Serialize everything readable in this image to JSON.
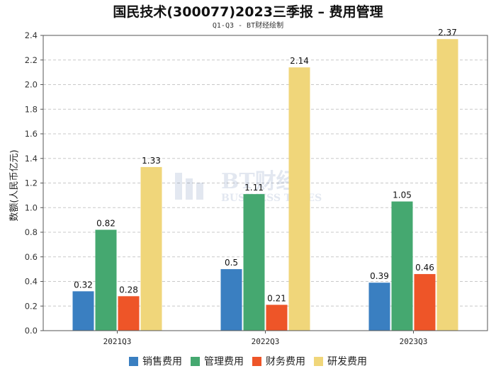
{
  "chart_data": {
    "type": "bar",
    "title": "国民技术(300077)2023三季报 – 费用管理",
    "subtitle": "Q1-Q3 - BT财经绘制",
    "xlabel": "",
    "ylabel": "数额(人民币亿元)",
    "categories": [
      "2021Q3",
      "2022Q3",
      "2023Q3"
    ],
    "ylim": [
      0,
      2.4
    ],
    "yticks": [
      "0.0",
      "0.2",
      "0.4",
      "0.6",
      "0.8",
      "1.0",
      "1.2",
      "1.4",
      "1.6",
      "1.8",
      "2.0",
      "2.2",
      "2.4"
    ],
    "grid": true,
    "legend_position": "bottom",
    "series": [
      {
        "name": "销售费用",
        "color": "#3a7fc1",
        "values": [
          0.32,
          0.5,
          0.39
        ],
        "labels": [
          "0.32",
          "0.5",
          "0.39"
        ]
      },
      {
        "name": "管理费用",
        "color": "#45a870",
        "values": [
          0.82,
          1.11,
          1.05
        ],
        "labels": [
          "0.82",
          "1.11",
          "1.05"
        ]
      },
      {
        "name": "财务费用",
        "color": "#ee5528",
        "values": [
          0.28,
          0.21,
          0.46
        ],
        "labels": [
          "0.28",
          "0.21",
          "0.46"
        ]
      },
      {
        "name": "研发费用",
        "color": "#f0d67a",
        "values": [
          1.33,
          2.14,
          2.37
        ],
        "labels": [
          "1.33",
          "2.14",
          "2.37"
        ]
      }
    ]
  },
  "watermark": {
    "text": "BT财经",
    "subtext": "BUSINESS TIMES"
  }
}
